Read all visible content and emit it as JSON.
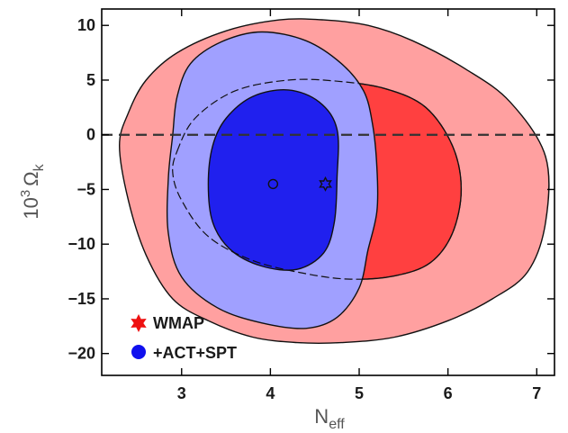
{
  "chart_data": {
    "type": "contour",
    "xlabel": "N",
    "xlabel_sub": "eff",
    "ylabel": "10",
    "ylabel_sup": "3",
    "ylabel_sym": "Ω",
    "ylabel_sub": "k",
    "xlim": [
      2.1,
      7.2
    ],
    "ylim": [
      -22,
      11.5
    ],
    "xticks": [
      3,
      4,
      5,
      6,
      7
    ],
    "yticks": [
      10,
      5,
      0,
      -5,
      -10,
      -15,
      -20
    ],
    "ytick_labels": [
      "10",
      "5",
      "0",
      "−5",
      "−10",
      "−15",
      "−20"
    ],
    "reference_line": {
      "y": 0,
      "style": "dashed"
    },
    "colors": {
      "wmap_outer": "#ffa0a0",
      "wmap_inner": "#ff4040",
      "act_outer": "#a0a0ff",
      "act_inner": "#2020ee",
      "legend_wmap": "#ee1111",
      "legend_act": "#1010ee"
    },
    "series": [
      {
        "name": "WMAP",
        "marker": "hexagram",
        "best_fit": [
          4.62,
          -4.5
        ],
        "contour_95": [
          [
            2.3,
            -1
          ],
          [
            2.4,
            2
          ],
          [
            2.6,
            5
          ],
          [
            2.95,
            7.5
          ],
          [
            3.5,
            9.5
          ],
          [
            4.1,
            10.5
          ],
          [
            4.6,
            10.5
          ],
          [
            5.1,
            10
          ],
          [
            5.6,
            8.6
          ],
          [
            6.2,
            6
          ],
          [
            6.7,
            3
          ],
          [
            7.1,
            -2
          ],
          [
            7.1,
            -8
          ],
          [
            6.9,
            -12.5
          ],
          [
            6.5,
            -15
          ],
          [
            6,
            -17
          ],
          [
            5.4,
            -18.5
          ],
          [
            4.8,
            -19
          ],
          [
            4.3,
            -19
          ],
          [
            3.8,
            -18.5
          ],
          [
            3.3,
            -17
          ],
          [
            2.9,
            -15
          ],
          [
            2.6,
            -11
          ],
          [
            2.4,
            -6
          ]
        ],
        "contour_68": [
          [
            2.95,
            -1.5
          ],
          [
            3.15,
            1.5
          ],
          [
            3.6,
            4
          ],
          [
            4.2,
            5
          ],
          [
            4.75,
            4.9
          ],
          [
            5.3,
            4.2
          ],
          [
            5.75,
            2.5
          ],
          [
            6.05,
            -1
          ],
          [
            6.15,
            -5
          ],
          [
            6.05,
            -9
          ],
          [
            5.8,
            -11.7
          ],
          [
            5.4,
            -12.9
          ],
          [
            4.9,
            -13.2
          ],
          [
            4.4,
            -12.7
          ],
          [
            3.8,
            -11.5
          ],
          [
            3.3,
            -9.3
          ],
          [
            3,
            -6
          ],
          [
            2.9,
            -3.5
          ]
        ]
      },
      {
        "name": "+ACT+SPT",
        "marker": "circle",
        "best_fit": [
          4.03,
          -4.5
        ],
        "contour_95": [
          [
            2.9,
            0
          ],
          [
            2.95,
            3.5
          ],
          [
            3.1,
            6.5
          ],
          [
            3.45,
            8.5
          ],
          [
            3.9,
            9.4
          ],
          [
            4.4,
            8.6
          ],
          [
            4.8,
            6.5
          ],
          [
            5.05,
            4
          ],
          [
            5.15,
            1
          ],
          [
            5.2,
            -3
          ],
          [
            5.2,
            -7
          ],
          [
            5.1,
            -10.5
          ],
          [
            5,
            -14
          ],
          [
            4.75,
            -16.7
          ],
          [
            4.4,
            -17.7
          ],
          [
            3.9,
            -17.2
          ],
          [
            3.4,
            -15.8
          ],
          [
            3,
            -13
          ],
          [
            2.85,
            -9
          ],
          [
            2.85,
            -4
          ]
        ],
        "contour_68": [
          [
            3.35,
            -1
          ],
          [
            3.5,
            1.5
          ],
          [
            3.8,
            3.5
          ],
          [
            4.2,
            4.1
          ],
          [
            4.55,
            3
          ],
          [
            4.75,
            0.5
          ],
          [
            4.75,
            -4
          ],
          [
            4.72,
            -8
          ],
          [
            4.6,
            -10.8
          ],
          [
            4.3,
            -12.3
          ],
          [
            3.9,
            -12
          ],
          [
            3.55,
            -10.5
          ],
          [
            3.35,
            -8
          ],
          [
            3.3,
            -4.5
          ]
        ]
      }
    ],
    "legend": {
      "placement": "bottom-left",
      "entries": [
        {
          "label": "WMAP",
          "marker": "hexagram"
        },
        {
          "label": "+ACT+SPT",
          "marker": "circle"
        }
      ]
    }
  }
}
